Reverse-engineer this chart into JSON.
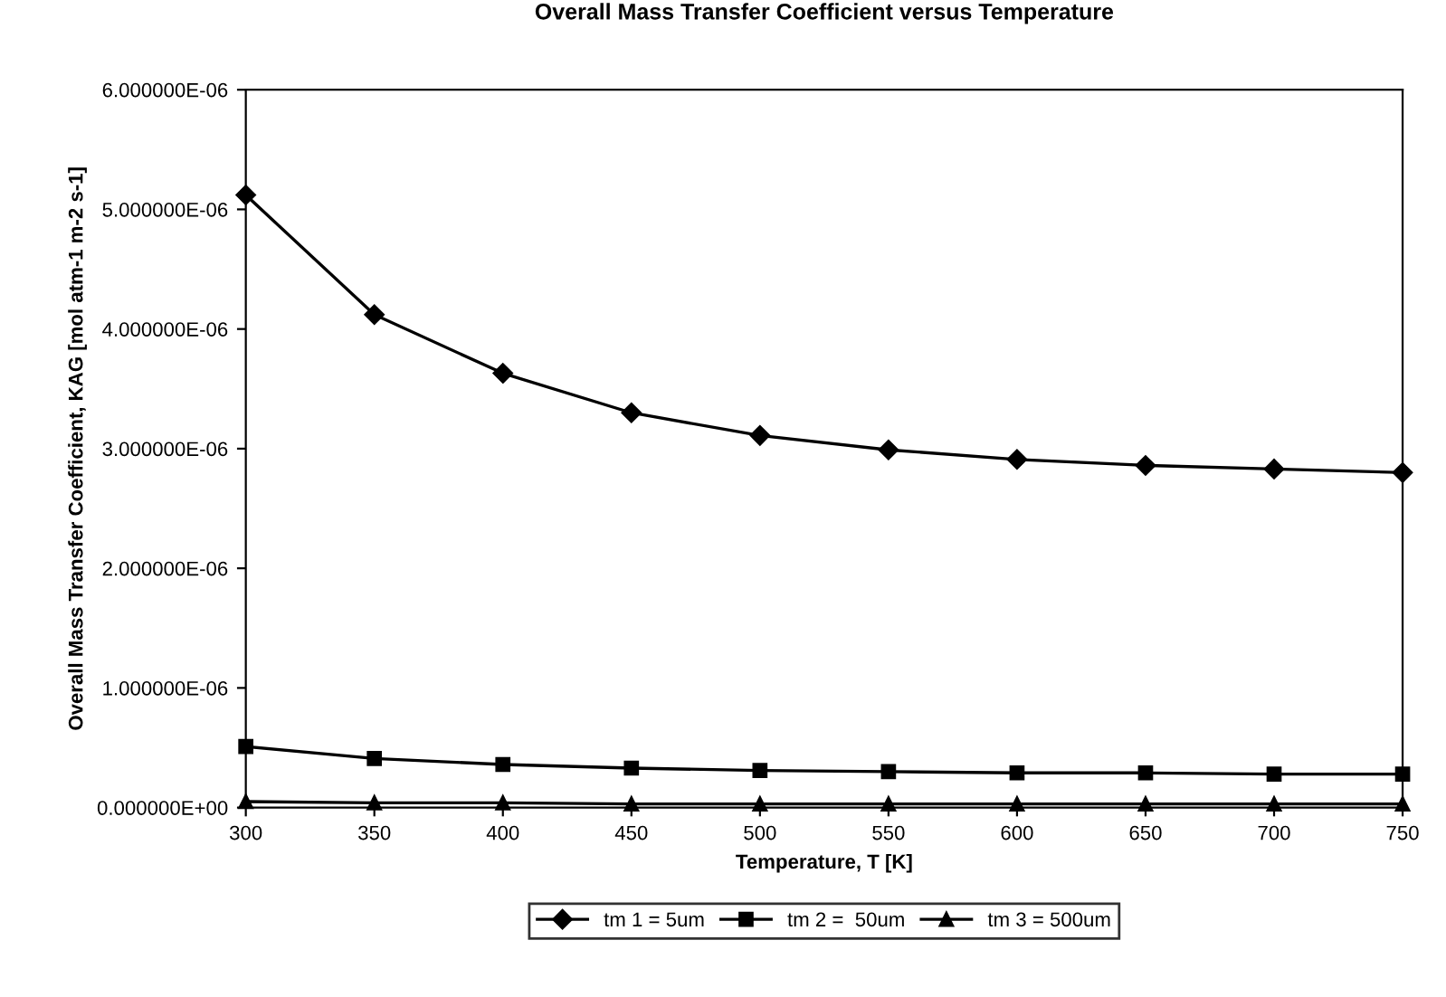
{
  "chart_data": {
    "type": "line",
    "title": "Overall Mass Transfer Coefficient versus Temperature",
    "xlabel": "Temperature, T [K]",
    "ylabel": "Overall Mass Transfer Coefficient, KAG [mol atm-1 m-2 s-1]",
    "x": [
      300,
      350,
      400,
      450,
      500,
      550,
      600,
      650,
      700,
      750
    ],
    "xlim": [
      300,
      750
    ],
    "xticks": [
      300,
      350,
      400,
      450,
      500,
      550,
      600,
      650,
      700,
      750
    ],
    "ylim": [
      0,
      6e-06
    ],
    "yticks": [
      {
        "value": 0,
        "label": "0.000000E+00"
      },
      {
        "value": 1e-06,
        "label": "1.000000E-06"
      },
      {
        "value": 2e-06,
        "label": "2.000000E-06"
      },
      {
        "value": 3e-06,
        "label": "3.000000E-06"
      },
      {
        "value": 4e-06,
        "label": "4.000000E-06"
      },
      {
        "value": 5e-06,
        "label": "5.000000E-06"
      },
      {
        "value": 6e-06,
        "label": "6.000000E-06"
      }
    ],
    "grid": false,
    "legend": "bottom",
    "series": [
      {
        "name": "tm 1 = 5um",
        "color": "#000000",
        "marker": "diamond",
        "values": [
          5.12e-06,
          4.12e-06,
          3.63e-06,
          3.3e-06,
          3.11e-06,
          2.99e-06,
          2.91e-06,
          2.86e-06,
          2.83e-06,
          2.8e-06
        ]
      },
      {
        "name": "tm 2 =  50um",
        "color": "#000000",
        "marker": "square",
        "values": [
          5.1e-07,
          4.1e-07,
          3.6e-07,
          3.3e-07,
          3.1e-07,
          3e-07,
          2.9e-07,
          2.9e-07,
          2.8e-07,
          2.8e-07
        ]
      },
      {
        "name": "tm 3 = 500um",
        "color": "#000000",
        "marker": "triangle",
        "values": [
          5e-08,
          4e-08,
          4e-08,
          3e-08,
          3e-08,
          3e-08,
          3e-08,
          3e-08,
          3e-08,
          3e-08
        ]
      }
    ]
  }
}
